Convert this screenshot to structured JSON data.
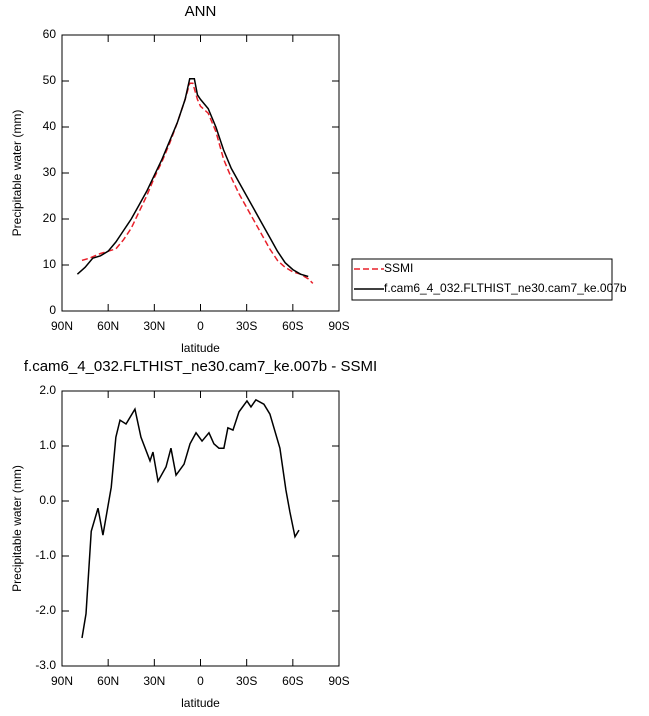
{
  "chart_data": [
    {
      "type": "line",
      "title": "ANN",
      "xlabel": "latitude",
      "ylabel": "Precipitable water (mm)",
      "xlim": [
        90,
        -90
      ],
      "xticks": [
        {
          "value": 90,
          "label": "90N"
        },
        {
          "value": 60,
          "label": "60N"
        },
        {
          "value": 30,
          "label": "30N"
        },
        0,
        {
          "value": -30,
          "label": "30S"
        },
        {
          "value": -60,
          "label": "60S"
        },
        {
          "value": -90,
          "label": "90S"
        }
      ],
      "ylim": [
        0,
        60
      ],
      "yticks": [
        0,
        10,
        20,
        30,
        40,
        50,
        60
      ],
      "legend": "right",
      "series": [
        {
          "name": "SSMI",
          "color": "#e8202a",
          "linestyle": "dashed",
          "x": [
            77,
            72,
            65,
            60,
            55,
            50,
            45,
            40,
            35,
            30,
            25,
            20,
            15,
            10,
            7,
            5,
            2,
            0,
            -5,
            -10,
            -15,
            -20,
            -25,
            -30,
            -35,
            -40,
            -45,
            -50,
            -55,
            -60,
            -65,
            -70,
            -73
          ],
          "values": [
            11,
            11.5,
            12.5,
            13,
            13.5,
            15.5,
            18,
            21.5,
            25,
            29,
            32.5,
            36.5,
            41,
            46,
            49.5,
            49.5,
            46,
            44.5,
            43,
            39,
            33,
            29,
            25.5,
            22.5,
            19.5,
            16.5,
            13.5,
            11,
            9.5,
            8.5,
            8,
            7,
            6
          ]
        },
        {
          "name": "f.cam6_4_032.FLTHIST_ne30.cam7_ke.007b",
          "color": "#000000",
          "linestyle": "solid",
          "x": [
            80,
            75,
            70,
            65,
            60,
            55,
            50,
            45,
            40,
            35,
            30,
            25,
            20,
            15,
            10,
            7,
            4,
            2,
            0,
            -5,
            -10,
            -15,
            -20,
            -25,
            -30,
            -35,
            -40,
            -45,
            -50,
            -55,
            -60,
            -65,
            -70
          ],
          "values": [
            8,
            9.5,
            11.5,
            12,
            13,
            15,
            17.5,
            20,
            23,
            26,
            29.5,
            33,
            37,
            41,
            46,
            50.5,
            50.5,
            47,
            46,
            44,
            40,
            35,
            31,
            28,
            25,
            22,
            19,
            16,
            13,
            10.5,
            9,
            8,
            7.5
          ]
        }
      ]
    },
    {
      "type": "line",
      "title": "f.cam6_4_032.FLTHIST_ne30.cam7_ke.007b - SSMI",
      "xlabel": "latitude",
      "ylabel": "Precipitable water (mm)",
      "xlim": [
        90,
        -90
      ],
      "xticks": [
        {
          "value": 90,
          "label": "90N"
        },
        {
          "value": 60,
          "label": "60N"
        },
        {
          "value": 30,
          "label": "30N"
        },
        0,
        {
          "value": -30,
          "label": "30S"
        },
        {
          "value": -60,
          "label": "60S"
        },
        {
          "value": -90,
          "label": "90S"
        }
      ],
      "ylim": [
        -3,
        2
      ],
      "yticks": [
        {
          "value": -3,
          "label": "-3.0"
        },
        {
          "value": -2,
          "label": "-2.0"
        },
        {
          "value": -1,
          "label": "-1.0"
        },
        {
          "value": 0,
          "label": "0.0"
        },
        {
          "value": 1,
          "label": "1.0"
        },
        {
          "value": 2,
          "label": "2.0"
        }
      ],
      "series": [
        {
          "color": "#000000",
          "linestyle": "solid",
          "x": [
            77,
            74.4,
            71,
            66.6,
            63.4,
            58,
            55,
            52.3,
            48.4,
            42.6,
            38.7,
            32.8,
            30.9,
            27.6,
            22.4,
            19.2,
            15.9,
            10.7,
            6.8,
            2.9,
            -1,
            -5.5,
            -8.7,
            -12,
            -15.2,
            -17.8,
            -21.1,
            -25,
            -30.2,
            -32.8,
            -36,
            -41.2,
            -45.1,
            -51.6,
            -55.5,
            -58.1,
            -61.4,
            -64
          ],
          "values": [
            -2.49,
            -2.05,
            -0.55,
            -0.13,
            -0.62,
            0.25,
            1.16,
            1.47,
            1.4,
            1.67,
            1.16,
            0.73,
            0.89,
            0.36,
            0.62,
            0.96,
            0.47,
            0.67,
            1.04,
            1.24,
            1.09,
            1.24,
            1.04,
            0.96,
            0.96,
            1.33,
            1.29,
            1.62,
            1.82,
            1.71,
            1.84,
            1.76,
            1.58,
            0.96,
            0.2,
            -0.2,
            -0.65,
            -0.53
          ]
        }
      ]
    }
  ]
}
